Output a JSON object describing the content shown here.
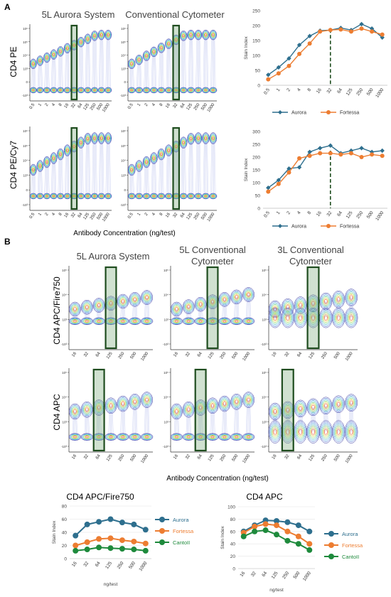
{
  "panel_a": {
    "letter": "A",
    "col1": "5L Aurora System",
    "col2": "Conventional Cytometer",
    "row1": "CD4 PE",
    "row2": "CD4 PE/Cy7",
    "xlabel": "Antibody Concentration (ng/test)",
    "ticks": [
      "0.5",
      "1",
      "2",
      "4",
      "8",
      "16",
      "32",
      "64",
      "125",
      "250",
      "500",
      "1000"
    ],
    "yticks": [
      "10⁶",
      "10⁵",
      "10⁴",
      "10³",
      "0",
      "-10³"
    ],
    "highlight_index": 6
  },
  "panel_b": {
    "letter": "B",
    "col1": "5L Aurora System",
    "col2": "5L Conventional\nCytometer",
    "col3": "3L Conventional\nCytometer",
    "row1": "CD4 APC/Fire750",
    "row2": "CD4 APC",
    "xlabel": "Antibody Concentration (ng/test)",
    "ticks": [
      "16",
      "32",
      "64",
      "125",
      "250",
      "500",
      "1000"
    ],
    "yticks": [
      "10⁵",
      "10⁴",
      "10³",
      "-10³"
    ],
    "row1_highlight": 3,
    "row2_highlight": [
      2,
      2,
      1
    ]
  },
  "colors": {
    "aurora": "#2e6f8e",
    "fortessa": "#ed7d31",
    "cantoii": "#1e8a3c",
    "box": "#1f4d1f"
  },
  "chart_data": [
    {
      "type": "line",
      "ylabel": "Stain Index",
      "categories": [
        "0.5",
        "1",
        "2",
        "4",
        "8",
        "16",
        "32",
        "64",
        "125",
        "250",
        "500",
        "1000"
      ],
      "ylim": [
        0,
        250
      ],
      "yticks": [
        0,
        50,
        100,
        150,
        200,
        250
      ],
      "marker_line_at": "32",
      "series": [
        {
          "name": "Aurora",
          "values": [
            35,
            60,
            90,
            135,
            165,
            183,
            185,
            192,
            185,
            205,
            190,
            160
          ]
        },
        {
          "name": "Fortessa",
          "values": [
            20,
            40,
            65,
            105,
            140,
            180,
            185,
            187,
            180,
            190,
            180,
            170
          ]
        }
      ]
    },
    {
      "type": "line",
      "ylabel": "Stain Index",
      "categories": [
        "0.5",
        "1",
        "2",
        "4",
        "8",
        "16",
        "32",
        "64",
        "125",
        "250",
        "500",
        "1000"
      ],
      "ylim": [
        0,
        300
      ],
      "yticks": [
        0,
        50,
        100,
        150,
        200,
        250,
        300
      ],
      "marker_line_at": "32",
      "series": [
        {
          "name": "Aurora",
          "values": [
            80,
            110,
            155,
            160,
            220,
            235,
            245,
            215,
            225,
            235,
            220,
            225
          ]
        },
        {
          "name": "Fortessa",
          "values": [
            65,
            95,
            140,
            195,
            205,
            215,
            215,
            210,
            215,
            200,
            210,
            205
          ]
        }
      ]
    },
    {
      "type": "line",
      "title": "CD4  APC/Fire750",
      "ylabel": "Stain Index",
      "xlabel": "ng/test",
      "categories": [
        "16",
        "32",
        "64",
        "125",
        "250",
        "500",
        "1000"
      ],
      "ylim": [
        0,
        80
      ],
      "yticks": [
        0,
        20,
        40,
        60,
        80
      ],
      "series": [
        {
          "name": "Aurora",
          "values": [
            35,
            52,
            56,
            60,
            55,
            52,
            44
          ]
        },
        {
          "name": "Fortessa",
          "values": [
            20,
            25,
            30,
            31,
            28,
            26,
            23
          ]
        },
        {
          "name": "CantoII",
          "values": [
            12,
            14,
            17,
            16,
            15,
            14,
            12
          ]
        }
      ]
    },
    {
      "type": "line",
      "title": "CD4 APC",
      "ylabel": "Stain Index",
      "xlabel": "ng/test",
      "categories": [
        "16",
        "32",
        "64",
        "125",
        "250",
        "500",
        "1000"
      ],
      "ylim": [
        0,
        100
      ],
      "yticks": [
        0,
        20,
        40,
        60,
        80,
        100
      ],
      "series": [
        {
          "name": "Aurora",
          "values": [
            60,
            70,
            78,
            77,
            75,
            70,
            60
          ]
        },
        {
          "name": "Fortessa",
          "values": [
            58,
            68,
            72,
            70,
            60,
            52,
            40
          ]
        },
        {
          "name": "CantoII",
          "values": [
            52,
            60,
            62,
            55,
            45,
            40,
            30
          ]
        }
      ]
    }
  ]
}
